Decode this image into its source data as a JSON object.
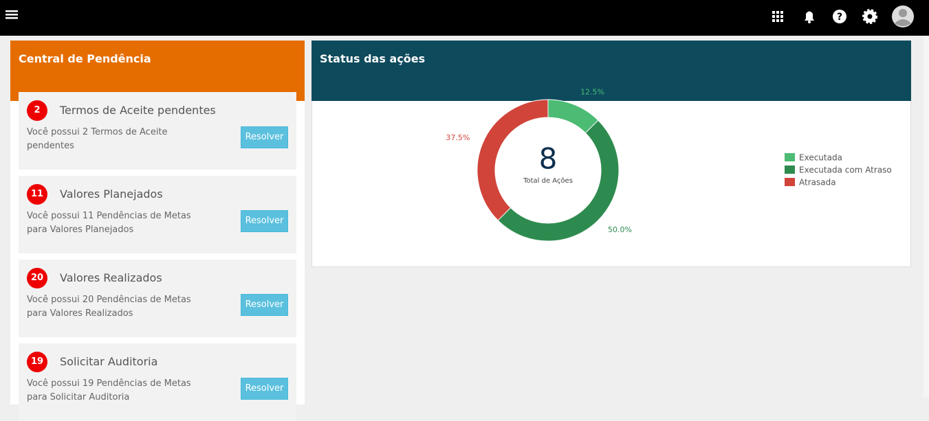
{
  "pending_panel": {
    "title": "Central de Pendência",
    "items": [
      {
        "count": 2,
        "title": "Termos de Aceite pendentes",
        "description": [
          "Você possui 2 Termos de Aceite",
          "pendentes"
        ],
        "button": "Resolver"
      },
      {
        "count": 11,
        "title": "Valores Planejados",
        "description": [
          "Você possui 11 Pendências de Metas",
          "para Valores Planejados"
        ],
        "button": "Resolver"
      },
      {
        "count": 20,
        "title": "Valores Realizados",
        "description": [
          "Você possui 20 Pendências de Metas",
          "para Valores Realizados"
        ],
        "button": "Resolver"
      },
      {
        "count": 19,
        "title": "Solicitar Auditoria",
        "description": [
          "Você possui 19 Pendências de Metas",
          "para Solicitar Auditoria"
        ],
        "button": "Resolver"
      }
    ]
  },
  "status_panel": {
    "title": "Status das ações"
  },
  "chart_data": {
    "type": "donut",
    "categories": [
      "Executada",
      "Executada com Atraso",
      "Atrasada"
    ],
    "values": [
      12.5,
      50.0,
      37.5
    ],
    "value_labels": [
      "12.5%",
      "50.0%",
      "37.5%"
    ],
    "colors": [
      "#4cbb73",
      "#2e8b4f",
      "#d0443a"
    ],
    "total": 8,
    "total_label": "Total de Ações",
    "legend": "right"
  }
}
